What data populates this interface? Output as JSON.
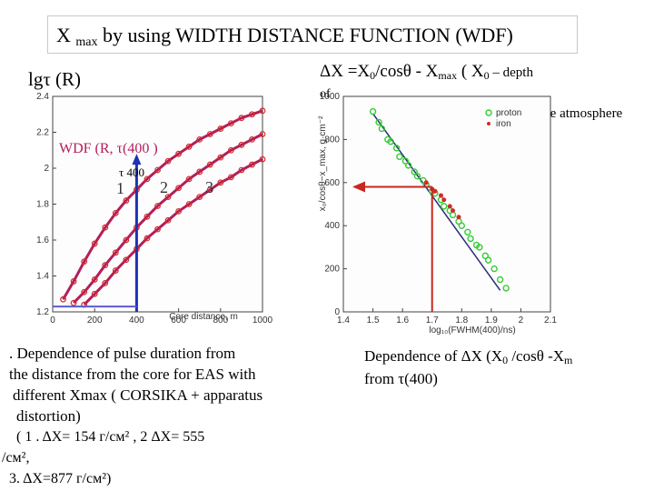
{
  "title": {
    "main": "X",
    "sub": "max",
    "rest": "by using WIDTH DISTANCE FUNCTION (WDF)"
  },
  "left_plot_label": "lgτ  (R)",
  "formula": {
    "text": "ΔX  =X",
    "sub0": "0",
    "mid": "/cosθ - X",
    "submax": "max",
    "rest": "  ( X",
    "sub0b": "0",
    "tail": " – depth"
  },
  "formula_of": "of",
  "atmosphere_text": "the atmosphere",
  "colors": {
    "curve": "#b21e5a",
    "point_red": "#d42a2a",
    "vline": "#1e32b4",
    "hline": "#c8281e",
    "green": "#33cc33",
    "fit": "#2a2a7a"
  },
  "chart_data": [
    {
      "type": "line",
      "title": "WDF (R, τ(400 )",
      "tau_label": "τ  400",
      "curve_labels": [
        "1",
        "2",
        "3"
      ],
      "xlabel": "Core distance, m",
      "ylabel": "",
      "xlim": [
        0,
        1000
      ],
      "ylim": [
        1.2,
        2.4
      ],
      "xticks": [
        "0",
        "200",
        "400",
        "600",
        "800",
        "1000"
      ],
      "yticks": [
        "1.2",
        "1.4",
        "1.6",
        "1.8",
        "2",
        "2.2",
        "2.4"
      ],
      "marker_x": 400,
      "series": [
        {
          "name": "1",
          "x": [
            50,
            100,
            150,
            200,
            250,
            300,
            350,
            400,
            450,
            500,
            550,
            600,
            650,
            700,
            750,
            800,
            850,
            900,
            950,
            1000
          ],
          "y": [
            1.27,
            1.37,
            1.48,
            1.58,
            1.67,
            1.75,
            1.82,
            1.88,
            1.94,
            1.99,
            2.04,
            2.08,
            2.12,
            2.16,
            2.19,
            2.22,
            2.25,
            2.28,
            2.3,
            2.32
          ]
        },
        {
          "name": "2",
          "x": [
            100,
            150,
            200,
            250,
            300,
            350,
            400,
            450,
            500,
            550,
            600,
            650,
            700,
            750,
            800,
            850,
            900,
            950,
            1000
          ],
          "y": [
            1.25,
            1.31,
            1.38,
            1.46,
            1.53,
            1.6,
            1.67,
            1.73,
            1.79,
            1.84,
            1.89,
            1.94,
            1.98,
            2.02,
            2.06,
            2.1,
            2.13,
            2.16,
            2.19
          ]
        },
        {
          "name": "3",
          "x": [
            150,
            200,
            250,
            300,
            350,
            400,
            450,
            500,
            550,
            600,
            650,
            700,
            750,
            800,
            850,
            900,
            950,
            1000
          ],
          "y": [
            1.24,
            1.3,
            1.36,
            1.43,
            1.49,
            1.55,
            1.61,
            1.66,
            1.71,
            1.76,
            1.8,
            1.84,
            1.88,
            1.92,
            1.95,
            1.99,
            2.02,
            2.05
          ]
        }
      ]
    },
    {
      "type": "scatter",
      "title": "",
      "xlabel": "log₁₀(FWHM(400)/ns)",
      "ylabel": "x₀/cosθ−x_max, g·cm⁻²",
      "xlim": [
        1.4,
        2.1
      ],
      "ylim": [
        0,
        1000
      ],
      "xticks": [
        "1.4",
        "1.5",
        "1.6",
        "1.7",
        "1.8",
        "1.9",
        "2",
        "2.1"
      ],
      "yticks": [
        "0",
        "200",
        "400",
        "600",
        "800",
        "1000"
      ],
      "legend": [
        "proton",
        "iron"
      ],
      "fit_line": {
        "x": [
          1.5,
          1.93
        ],
        "y": [
          920,
          100
        ]
      },
      "marker": {
        "x": 1.7,
        "y": 580
      },
      "series": [
        {
          "name": "proton",
          "x": [
            1.5,
            1.52,
            1.53,
            1.55,
            1.56,
            1.58,
            1.59,
            1.61,
            1.62,
            1.64,
            1.65,
            1.67,
            1.68,
            1.7,
            1.71,
            1.73,
            1.74,
            1.76,
            1.77,
            1.79,
            1.8,
            1.82,
            1.83,
            1.85,
            1.86,
            1.88,
            1.89,
            1.91,
            1.93,
            1.95
          ],
          "y": [
            930,
            880,
            850,
            800,
            790,
            760,
            720,
            700,
            680,
            650,
            630,
            610,
            590,
            560,
            550,
            520,
            490,
            470,
            450,
            420,
            400,
            370,
            340,
            310,
            300,
            260,
            240,
            200,
            150,
            110
          ]
        },
        {
          "name": "iron",
          "x": [
            1.68,
            1.7,
            1.71,
            1.73,
            1.74,
            1.76,
            1.77,
            1.79
          ],
          "y": [
            600,
            570,
            560,
            540,
            520,
            490,
            470,
            440
          ]
        }
      ]
    }
  ],
  "caption_left": {
    "line1": ". Dependence of pulse duration from",
    "line2": "the distance from the core for EAS with",
    "line3": "different Xmax   ( CORSIKA + apparatus",
    "line4": "distortion)",
    "line5": "( 1 .  ΔX=  154  г/см²  ,  2  ΔX=  555",
    "line6": "/см²,",
    "line7": "3.  ΔX=877 г/см²)"
  },
  "caption_right": {
    "line1a": "Dependence of  ΔX (X",
    "sub0": "0",
    "line1b": " /cosθ -X",
    "line1c": "m",
    "line2": "from  τ(400)"
  }
}
